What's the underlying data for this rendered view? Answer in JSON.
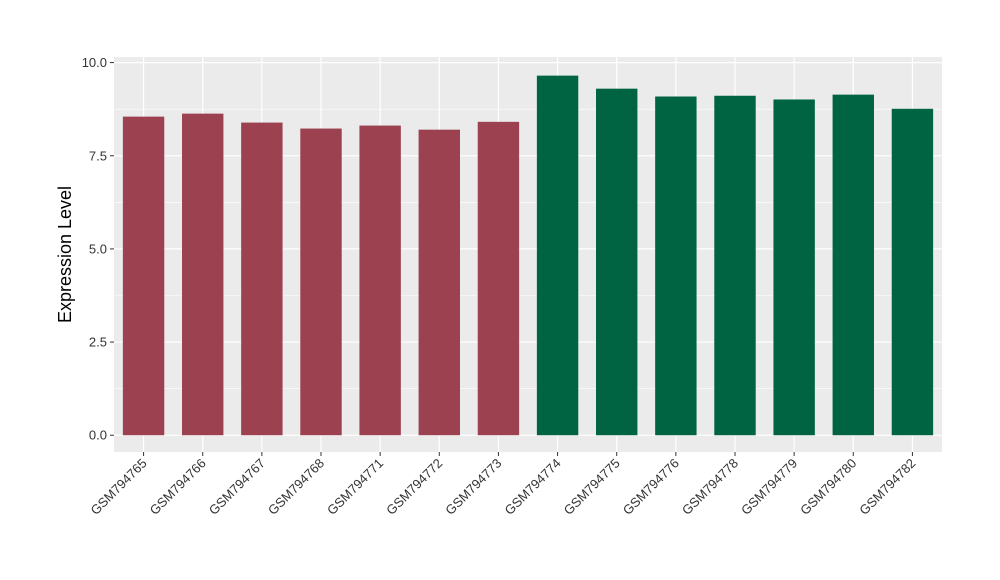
{
  "chart_data": {
    "type": "bar",
    "title": "",
    "xlabel": "",
    "ylabel": "Expression Level",
    "ylim": [
      -0.45,
      10.15
    ],
    "yticks": [
      "0.0",
      "2.5",
      "5.0",
      "7.5",
      "10.0"
    ],
    "ytick_values": [
      0,
      2.5,
      5,
      7.5,
      10
    ],
    "grid": true,
    "categories": [
      "GSM794765",
      "GSM794766",
      "GSM794767",
      "GSM794768",
      "GSM794771",
      "GSM794772",
      "GSM794773",
      "GSM794774",
      "GSM794775",
      "GSM794776",
      "GSM794778",
      "GSM794779",
      "GSM794780",
      "GSM794782"
    ],
    "values": [
      8.55,
      8.63,
      8.39,
      8.23,
      8.31,
      8.2,
      8.41,
      9.65,
      9.3,
      9.09,
      9.11,
      9.01,
      9.14,
      8.76
    ],
    "groups": [
      0,
      0,
      0,
      0,
      0,
      0,
      0,
      1,
      1,
      1,
      1,
      1,
      1,
      1
    ],
    "colors": [
      "#9b4150",
      "#006443"
    ],
    "panel_bg": "#ebebeb"
  }
}
